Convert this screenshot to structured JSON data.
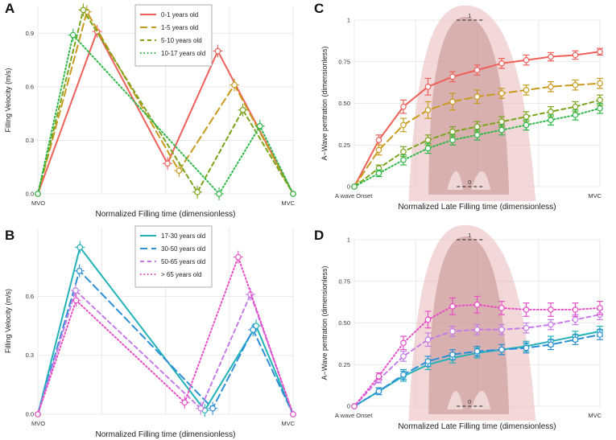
{
  "chart_data": [
    {
      "panel": "A",
      "type": "line",
      "xlabel": "Normalized Filling time (dimensionless)",
      "ylabel": "Filling Velocity (m/s)",
      "ylim": [
        0,
        1.05
      ],
      "yticks": [
        "0.0",
        "0.3",
        "0.6",
        "0.9"
      ],
      "ytick_values": [
        0,
        0.3,
        0.6,
        0.9
      ],
      "xtick_labels": [
        "MVO",
        "MVC"
      ],
      "xlim": [
        0,
        1
      ],
      "legend_position": "top-center",
      "series": [
        {
          "name": "0-1 years old",
          "color": "#f0605a",
          "dash": "solid",
          "x": [
            0,
            0.232,
            0.508,
            0.705,
            1
          ],
          "y": [
            0,
            0.91,
            0.17,
            0.8,
            0
          ]
        },
        {
          "name": "1-5 years old",
          "color": "#c89a1e",
          "dash": "long",
          "x": [
            0,
            0.192,
            0.553,
            0.77,
            1
          ],
          "y": [
            0,
            1.02,
            0.13,
            0.61,
            0
          ]
        },
        {
          "name": "5-10 years old",
          "color": "#7ba41a",
          "dash": "medium",
          "x": [
            0,
            0.178,
            0.625,
            0.803,
            1
          ],
          "y": [
            0,
            1.03,
            0.01,
            0.47,
            0
          ]
        },
        {
          "name": "10-17 years old",
          "color": "#2fb84a",
          "dash": "dot",
          "x": [
            0,
            0.138,
            0.71,
            0.87,
            1
          ],
          "y": [
            0,
            0.89,
            0.0,
            0.38,
            0
          ]
        }
      ]
    },
    {
      "panel": "B",
      "type": "line",
      "xlabel": "Normalized Filling time (dimensionless)",
      "ylabel": "Filling Velocity (m/s)",
      "ylim": [
        0,
        0.95
      ],
      "yticks": [
        "0.0",
        "0.3",
        "0.6"
      ],
      "ytick_values": [
        0,
        0.3,
        0.6
      ],
      "xtick_labels": [
        "MVO",
        "MVC"
      ],
      "xlim": [
        0,
        1
      ],
      "legend_position": "top-center",
      "series": [
        {
          "name": "17-30 years old",
          "color": "#22b3b8",
          "dash": "solid",
          "x": [
            0,
            0.165,
            0.654,
            0.855,
            1
          ],
          "y": [
            0,
            0.85,
            0.02,
            0.45,
            0
          ]
        },
        {
          "name": "30-50 years old",
          "color": "#2d8fd6",
          "dash": "long",
          "x": [
            0,
            0.163,
            0.685,
            0.843,
            1
          ],
          "y": [
            0,
            0.73,
            0.03,
            0.43,
            0
          ]
        },
        {
          "name": "50-65 years old",
          "color": "#c67be8",
          "dash": "medium",
          "x": [
            0,
            0.148,
            0.638,
            0.833,
            1
          ],
          "y": [
            0,
            0.63,
            0.03,
            0.61,
            0
          ]
        },
        {
          "name": "> 65 years old",
          "color": "#e84fc6",
          "dash": "dot",
          "x": [
            0,
            0.15,
            0.575,
            0.785,
            1
          ],
          "y": [
            0,
            0.58,
            0.06,
            0.8,
            0
          ]
        }
      ]
    },
    {
      "panel": "C",
      "type": "line",
      "xlabel": "Normalized Late Filling time (dimensionless)",
      "ylabel": "A−Wave pentration (dimensionless)",
      "ylim": [
        0,
        1
      ],
      "yticks": [
        "0",
        "0.25",
        "0.50",
        "0.75",
        "1"
      ],
      "ytick_values": [
        0,
        0.25,
        0.5,
        0.75,
        1
      ],
      "xtick_labels": [
        "A wave Onset",
        "MVC"
      ],
      "xlim": [
        0,
        1
      ],
      "annotations": [
        "1",
        "0"
      ],
      "series": [
        {
          "name": "0-1 years old",
          "color": "#f0605a",
          "dash": "solid",
          "x": [
            0,
            0.1,
            0.2,
            0.3,
            0.4,
            0.5,
            0.6,
            0.7,
            0.8,
            0.9,
            1
          ],
          "y": [
            0,
            0.28,
            0.48,
            0.6,
            0.66,
            0.7,
            0.74,
            0.76,
            0.78,
            0.79,
            0.81
          ],
          "err": [
            0,
            0.03,
            0.04,
            0.05,
            0.03,
            0.03,
            0.03,
            0.03,
            0.025,
            0.025,
            0.02
          ]
        },
        {
          "name": "1-5 years old",
          "color": "#c89a1e",
          "dash": "long",
          "x": [
            0,
            0.1,
            0.2,
            0.3,
            0.4,
            0.5,
            0.6,
            0.7,
            0.8,
            0.9,
            1
          ],
          "y": [
            0,
            0.22,
            0.37,
            0.46,
            0.51,
            0.54,
            0.56,
            0.58,
            0.6,
            0.61,
            0.62
          ],
          "err": [
            0,
            0.03,
            0.04,
            0.05,
            0.05,
            0.04,
            0.03,
            0.03,
            0.03,
            0.03,
            0.03
          ]
        },
        {
          "name": "5-10 years old",
          "color": "#7ba41a",
          "dash": "medium",
          "x": [
            0,
            0.1,
            0.2,
            0.3,
            0.4,
            0.5,
            0.6,
            0.7,
            0.8,
            0.9,
            1
          ],
          "y": [
            0,
            0.11,
            0.21,
            0.28,
            0.33,
            0.36,
            0.39,
            0.42,
            0.45,
            0.48,
            0.52
          ],
          "err": [
            0,
            0.02,
            0.03,
            0.03,
            0.03,
            0.03,
            0.03,
            0.03,
            0.03,
            0.03,
            0.03
          ]
        },
        {
          "name": "10-17 years old",
          "color": "#2fb84a",
          "dash": "dot",
          "x": [
            0,
            0.1,
            0.2,
            0.3,
            0.4,
            0.5,
            0.6,
            0.7,
            0.8,
            0.9,
            1
          ],
          "y": [
            0,
            0.08,
            0.16,
            0.23,
            0.28,
            0.31,
            0.34,
            0.37,
            0.4,
            0.43,
            0.47
          ],
          "err": [
            0,
            0.02,
            0.03,
            0.03,
            0.03,
            0.03,
            0.03,
            0.03,
            0.03,
            0.03,
            0.03
          ]
        }
      ]
    },
    {
      "panel": "D",
      "type": "line",
      "xlabel": "Normalized Late Filling time (dimensionless)",
      "ylabel": "A−Wave pentration (dimensionless)",
      "ylim": [
        0,
        1
      ],
      "yticks": [
        "0",
        "0.25",
        "0.50",
        "0.75",
        "1"
      ],
      "ytick_values": [
        0,
        0.25,
        0.5,
        0.75,
        1
      ],
      "xtick_labels": [
        "A wave Onset",
        "MVC"
      ],
      "xlim": [
        0,
        1
      ],
      "annotations": [
        "1",
        "0"
      ],
      "series": [
        {
          "name": "17-30 years old",
          "color": "#22b3b8",
          "dash": "solid",
          "x": [
            0,
            0.1,
            0.2,
            0.3,
            0.4,
            0.5,
            0.6,
            0.7,
            0.8,
            0.9,
            1
          ],
          "y": [
            0,
            0.09,
            0.18,
            0.25,
            0.29,
            0.32,
            0.34,
            0.36,
            0.39,
            0.42,
            0.45
          ],
          "err": [
            0,
            0.02,
            0.03,
            0.03,
            0.03,
            0.03,
            0.03,
            0.03,
            0.03,
            0.03,
            0.03
          ]
        },
        {
          "name": "30-50 years old",
          "color": "#2d8fd6",
          "dash": "long",
          "x": [
            0,
            0.1,
            0.2,
            0.3,
            0.4,
            0.5,
            0.6,
            0.7,
            0.8,
            0.9,
            1
          ],
          "y": [
            0,
            0.09,
            0.19,
            0.27,
            0.31,
            0.33,
            0.34,
            0.35,
            0.37,
            0.4,
            0.43
          ],
          "err": [
            0,
            0.02,
            0.03,
            0.03,
            0.03,
            0.03,
            0.03,
            0.03,
            0.03,
            0.03,
            0.03
          ]
        },
        {
          "name": "50-65 years old",
          "color": "#c67be8",
          "dash": "medium",
          "x": [
            0,
            0.1,
            0.2,
            0.3,
            0.4,
            0.5,
            0.6,
            0.7,
            0.8,
            0.9,
            1
          ],
          "y": [
            0,
            0.16,
            0.3,
            0.4,
            0.45,
            0.46,
            0.46,
            0.47,
            0.49,
            0.52,
            0.55
          ],
          "err": [
            0,
            0.02,
            0.03,
            0.04,
            0.03,
            0.03,
            0.03,
            0.03,
            0.03,
            0.03,
            0.03
          ]
        },
        {
          "name": "> 65 years old",
          "color": "#e84fc6",
          "dash": "dot",
          "x": [
            0,
            0.1,
            0.2,
            0.3,
            0.4,
            0.5,
            0.6,
            0.7,
            0.8,
            0.9,
            1
          ],
          "y": [
            0,
            0.18,
            0.38,
            0.52,
            0.6,
            0.61,
            0.59,
            0.58,
            0.58,
            0.58,
            0.59
          ],
          "err": [
            0,
            0.02,
            0.04,
            0.05,
            0.05,
            0.05,
            0.04,
            0.04,
            0.04,
            0.04,
            0.04
          ]
        }
      ]
    }
  ]
}
